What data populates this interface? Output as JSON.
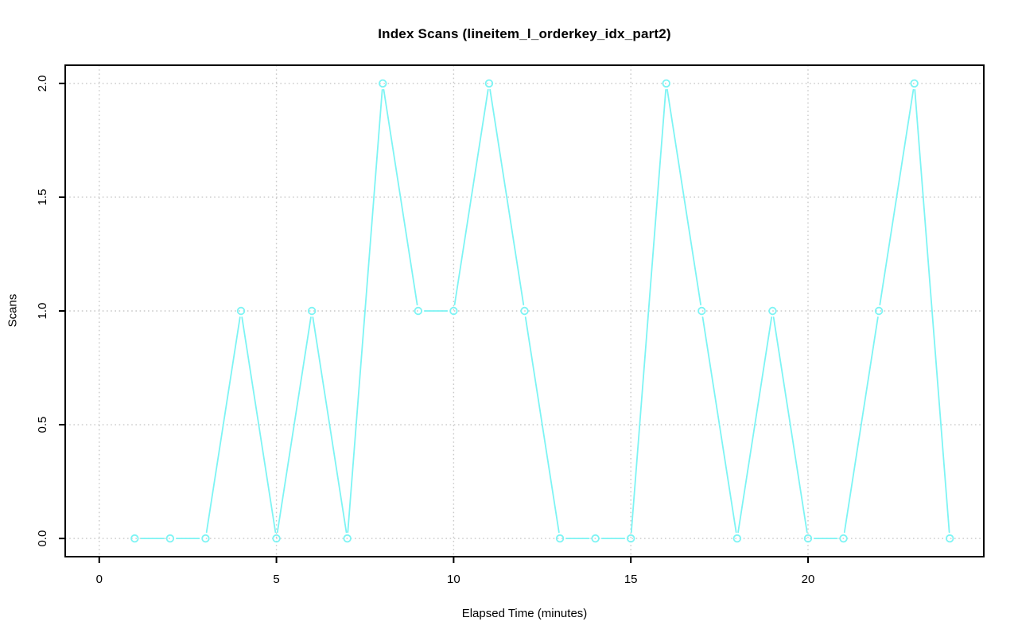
{
  "chart_data": {
    "type": "line",
    "title": "Index Scans (lineitem_l_orderkey_idx_part2)",
    "xlabel": "Elapsed Time (minutes)",
    "ylabel": "Scans",
    "x": [
      1,
      2,
      3,
      4,
      5,
      6,
      7,
      8,
      9,
      10,
      11,
      12,
      13,
      14,
      15,
      16,
      17,
      18,
      19,
      20,
      21,
      22,
      23,
      24
    ],
    "y": [
      0,
      0,
      0,
      1,
      0,
      1,
      0,
      2,
      1,
      1,
      2,
      1,
      0,
      0,
      0,
      2,
      1,
      0,
      1,
      0,
      0,
      1,
      2,
      0
    ],
    "x_ticks": [
      {
        "value": 0,
        "label": "0"
      },
      {
        "value": 5,
        "label": "5"
      },
      {
        "value": 10,
        "label": "10"
      },
      {
        "value": 15,
        "label": "15"
      },
      {
        "value": 20,
        "label": "20"
      }
    ],
    "y_ticks": [
      {
        "value": 0.0,
        "label": "0.0"
      },
      {
        "value": 0.5,
        "label": "0.5"
      },
      {
        "value": 1.0,
        "label": "1.0"
      },
      {
        "value": 1.5,
        "label": "1.5"
      },
      {
        "value": 2.0,
        "label": "2.0"
      }
    ],
    "xlim": [
      -0.96,
      24.96
    ],
    "ylim": [
      -0.08,
      2.08
    ],
    "grid": true,
    "grid_style": "dotted",
    "legend": null,
    "marker": "open-circle",
    "line_style": "segments-with-point-gaps",
    "colors": {
      "series": "#7DF4F4",
      "grid": "#C8C8C8",
      "axis": "#000000",
      "text": "#000000",
      "background": "#FFFFFF"
    }
  }
}
